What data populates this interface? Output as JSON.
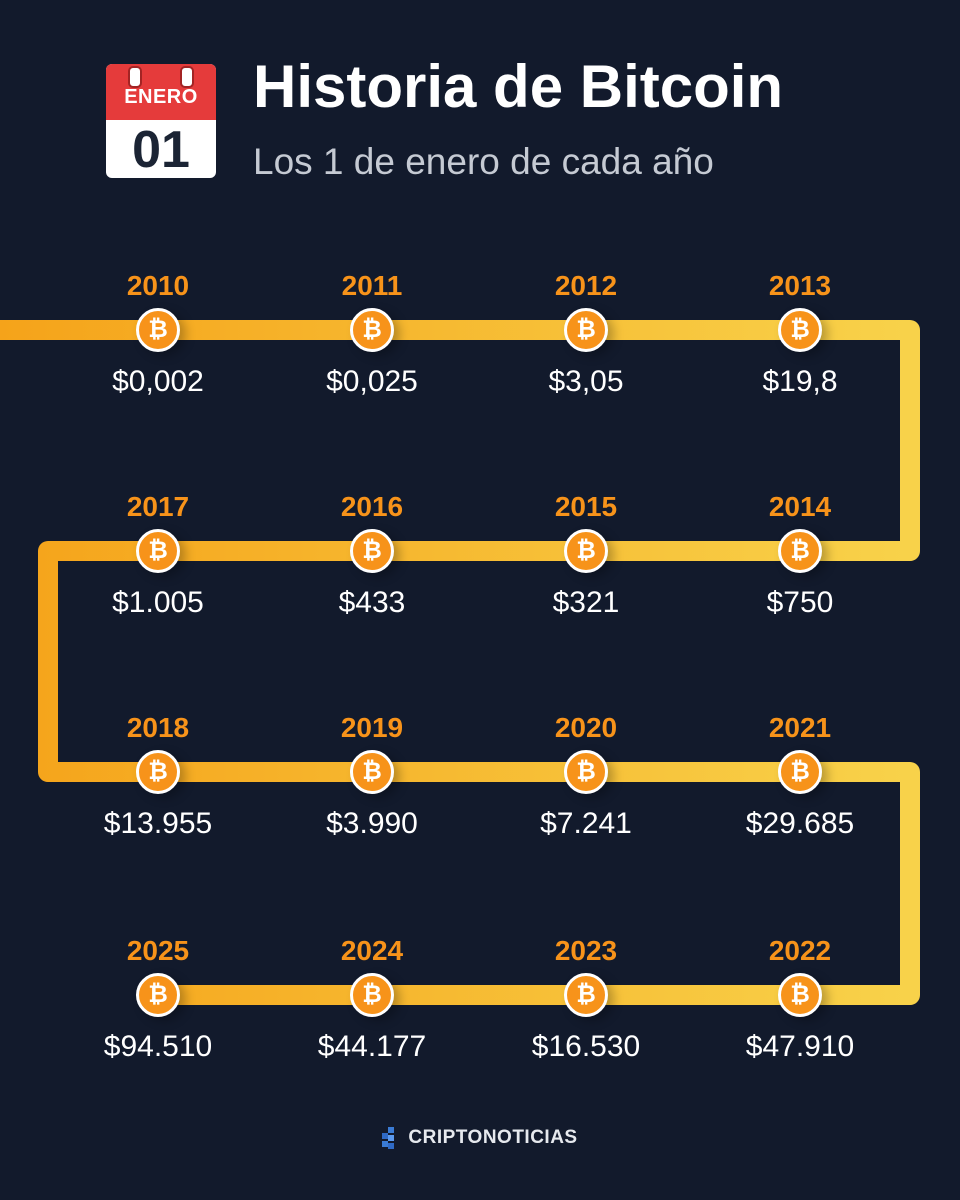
{
  "header": {
    "calendar_month": "ENERO",
    "calendar_day": "01",
    "title": "Historia de Bitcoin",
    "subtitle": "Los 1 de enero de cada año"
  },
  "colors": {
    "background": "#121a2c",
    "accent_orange": "#f7931a",
    "path_start": "#f5a31a",
    "path_end": "#f8d24a",
    "calendar_red": "#e53b3b"
  },
  "timeline": [
    {
      "year": "2010",
      "price": "$0,002",
      "icon": "bitcoin-icon"
    },
    {
      "year": "2011",
      "price": "$0,025",
      "icon": "bitcoin-icon"
    },
    {
      "year": "2012",
      "price": "$3,05",
      "icon": "bitcoin-icon"
    },
    {
      "year": "2013",
      "price": "$19,8",
      "icon": "bitcoin-icon"
    },
    {
      "year": "2014",
      "price": "$750",
      "icon": "bitcoin-icon"
    },
    {
      "year": "2015",
      "price": "$321",
      "icon": "bitcoin-icon"
    },
    {
      "year": "2016",
      "price": "$433",
      "icon": "bitcoin-icon"
    },
    {
      "year": "2017",
      "price": "$1.005",
      "icon": "bitcoin-icon"
    },
    {
      "year": "2018",
      "price": "$13.955",
      "icon": "bitcoin-icon"
    },
    {
      "year": "2019",
      "price": "$3.990",
      "icon": "bitcoin-icon"
    },
    {
      "year": "2020",
      "price": "$7.241",
      "icon": "bitcoin-icon"
    },
    {
      "year": "2021",
      "price": "$29.685",
      "icon": "bitcoin-icon"
    },
    {
      "year": "2022",
      "price": "$47.910",
      "icon": "bitcoin-icon"
    },
    {
      "year": "2023",
      "price": "$16.530",
      "icon": "bitcoin-icon"
    },
    {
      "year": "2024",
      "price": "$44.177",
      "icon": "bitcoin-icon"
    },
    {
      "year": "2025",
      "price": "$94.510",
      "icon": "bitcoin-icon"
    }
  ],
  "footer": {
    "brand": "CRIPTONOTICIAS",
    "logo_icon": "criptonoticias-logo-icon"
  }
}
